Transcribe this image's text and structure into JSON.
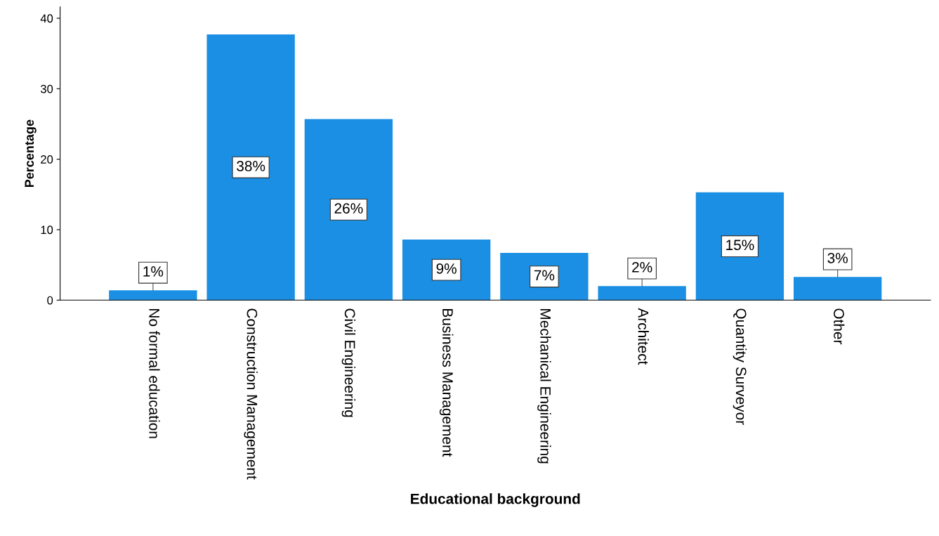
{
  "chart_data": {
    "type": "bar",
    "xlabel": "Educational background",
    "ylabel": "Percentage",
    "categories": [
      "No formal education",
      "Construction Management",
      "Civil Engineering",
      "Business Management",
      "Mechanical Engineering",
      "Architect",
      "Quantity Surveyor",
      "Other"
    ],
    "values": [
      1.4,
      37.7,
      25.7,
      8.6,
      6.7,
      2.0,
      15.3,
      3.3
    ],
    "value_labels": [
      "1%",
      "38%",
      "26%",
      "9%",
      "7%",
      "2%",
      "15%",
      "3%"
    ],
    "color": "#1a8fe3",
    "ylim": [
      0,
      41.6
    ],
    "yticks": [
      0,
      10,
      20,
      30,
      40
    ],
    "grid": false,
    "legend": false
  }
}
